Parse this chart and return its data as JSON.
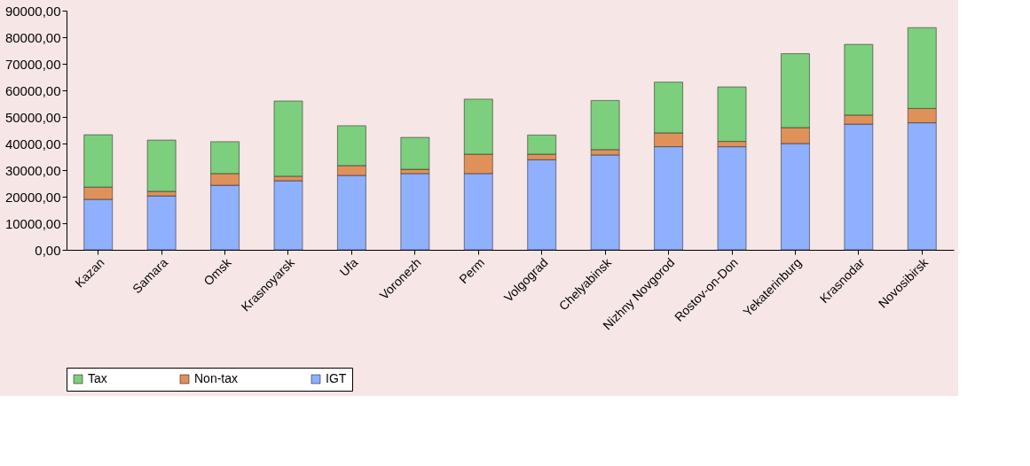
{
  "chart_data": {
    "type": "bar",
    "stacked": true,
    "legend": "bottom",
    "grid": false,
    "categories": [
      "Kazan",
      "Samara",
      "Omsk",
      "Krasnoyarsk",
      "Ufa",
      "Voronezh",
      "Perm",
      "Volgograd",
      "Chelyabinsk",
      "Nizhny Novgorod",
      "Rostov-on-Don",
      "Yekaterinburg",
      "Krasnodar",
      "Novosibirsk"
    ],
    "series": [
      {
        "name": "IGT",
        "color": "#8fb0ff",
        "values": [
          19000,
          20300,
          24300,
          26000,
          28000,
          28700,
          28700,
          33900,
          35700,
          38800,
          38800,
          40000,
          47300,
          47800
        ]
      },
      {
        "name": "Non-tax",
        "color": "#e0915a",
        "values": [
          4600,
          1700,
          4400,
          1700,
          3700,
          1600,
          7300,
          2100,
          2000,
          5200,
          2000,
          6000,
          3400,
          5400
        ]
      },
      {
        "name": "Tax",
        "color": "#7ccf7c",
        "values": [
          19700,
          19300,
          12000,
          28300,
          15000,
          12000,
          20700,
          7200,
          18500,
          19100,
          20500,
          27800,
          26600,
          30400
        ]
      }
    ],
    "ylim": [
      0,
      90000
    ],
    "yticks": [
      {
        "value": 0,
        "label": "0,00"
      },
      {
        "value": 10000,
        "label": "10000,00"
      },
      {
        "value": 20000,
        "label": "20000,00"
      },
      {
        "value": 30000,
        "label": "30000,00"
      },
      {
        "value": 40000,
        "label": "40000,00"
      },
      {
        "value": 50000,
        "label": "50000,00"
      },
      {
        "value": 60000,
        "label": "60000,00"
      },
      {
        "value": 70000,
        "label": "70000,00"
      },
      {
        "value": 80000,
        "label": "80000,00"
      },
      {
        "value": 90000,
        "label": "90000,00"
      }
    ]
  }
}
